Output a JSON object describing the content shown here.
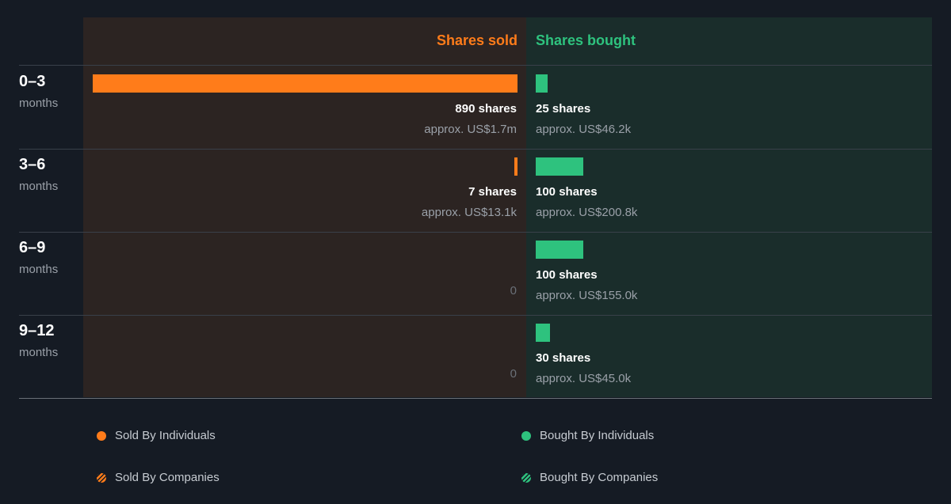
{
  "chart_data": {
    "type": "bar",
    "headers": {
      "sold": "Shares sold",
      "bought": "Shares bought"
    },
    "rows": [
      {
        "period": "0–3",
        "unit": "months",
        "sold": {
          "shares": 890,
          "label": "890 shares",
          "approx": "approx. US$1.7m"
        },
        "bought": {
          "shares": 25,
          "label": "25 shares",
          "approx": "approx. US$46.2k"
        }
      },
      {
        "period": "3–6",
        "unit": "months",
        "sold": {
          "shares": 7,
          "label": "7 shares",
          "approx": "approx. US$13.1k"
        },
        "bought": {
          "shares": 100,
          "label": "100 shares",
          "approx": "approx. US$200.8k"
        }
      },
      {
        "period": "6–9",
        "unit": "months",
        "sold": {
          "shares": 0,
          "label": "0",
          "approx": ""
        },
        "bought": {
          "shares": 100,
          "label": "100 shares",
          "approx": "approx. US$155.0k"
        }
      },
      {
        "period": "9–12",
        "unit": "months",
        "sold": {
          "shares": 0,
          "label": "0",
          "approx": ""
        },
        "bought": {
          "shares": 30,
          "label": "30 shares",
          "approx": "approx. US$45.0k"
        }
      }
    ],
    "scale_max_shares": 890,
    "legend": [
      {
        "label": "Sold By Individuals",
        "marker": "solid",
        "color": "#ff7c1a"
      },
      {
        "label": "Bought By Individuals",
        "marker": "solid",
        "color": "#2ec27e"
      },
      {
        "label": "Sold By Companies",
        "marker": "hatched",
        "color": "#ff7c1a"
      },
      {
        "label": "Bought By Companies",
        "marker": "hatched",
        "color": "#2ec27e"
      }
    ],
    "colors": {
      "sold": "#ff7c1a",
      "bought": "#2ec27e"
    }
  }
}
